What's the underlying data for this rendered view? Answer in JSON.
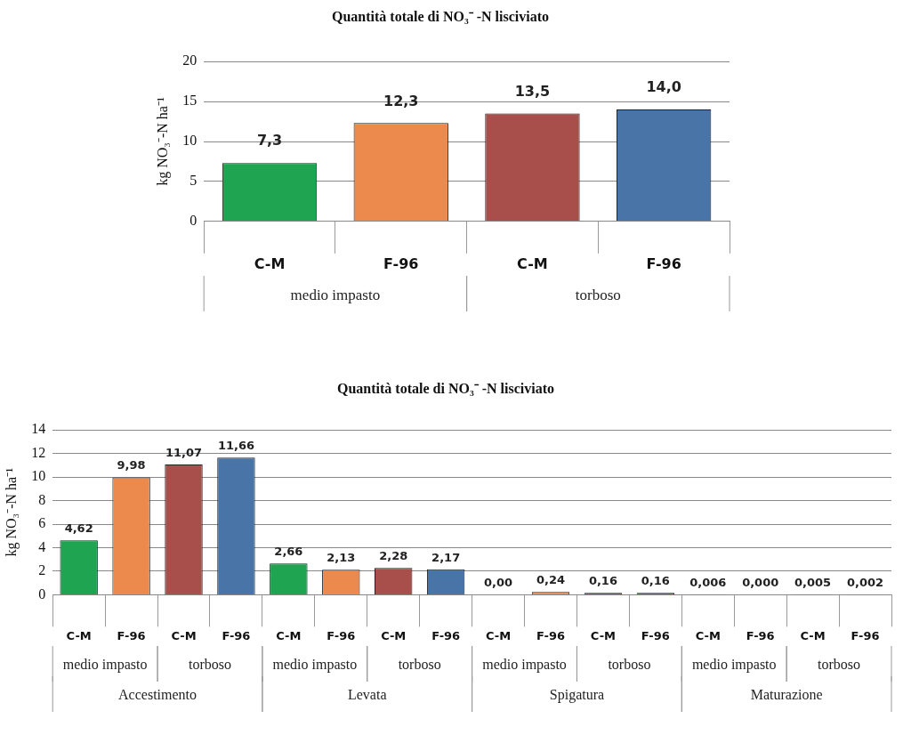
{
  "chart_data": [
    {
      "type": "bar",
      "title": "Quantità totale di NO₃⁻ -N lisciviato",
      "ylabel": "kg NO₃⁻-N ha⁻¹",
      "categories": [
        "C-M",
        "F-96",
        "C-M",
        "F-96"
      ],
      "values": [
        7.3,
        12.3,
        13.5,
        14.0
      ],
      "value_labels": [
        "7,3",
        "12,3",
        "13,5",
        "14,0"
      ],
      "colors": [
        "#1fa452",
        "#ec8a4e",
        "#a84f4b",
        "#4874a8"
      ],
      "ylim": [
        0,
        20
      ],
      "yticks": [
        0,
        5,
        10,
        15,
        20
      ],
      "grid": "y",
      "annotations": [
        "medio impasto",
        "torboso"
      ]
    },
    {
      "type": "bar",
      "title": "Quantità totale di NO₃⁻ -N lisciviato",
      "ylabel": "kg NO₃⁻-N ha⁻¹",
      "categories": [
        "C-M",
        "F-96",
        "C-M",
        "F-96",
        "C-M",
        "F-96",
        "C-M",
        "F-96",
        "C-M",
        "F-96",
        "C-M",
        "F-96",
        "C-M",
        "F-96",
        "C-M",
        "F-96"
      ],
      "values": [
        4.62,
        9.98,
        11.07,
        11.66,
        2.66,
        2.13,
        2.28,
        2.17,
        0.0,
        0.24,
        0.16,
        0.16,
        0.006,
        0.0,
        0.005,
        0.002
      ],
      "value_labels": [
        "4,62",
        "9,98",
        "11,07",
        "11,66",
        "2,66",
        "2,13",
        "2,28",
        "2,17",
        "0,00",
        "0,24",
        "0,16",
        "0,16",
        "0,006",
        "0,000",
        "0,005",
        "0,002"
      ],
      "colors": [
        "#1fa452",
        "#ec8a4e",
        "#a84f4b",
        "#4874a8",
        "#1fa452",
        "#ec8a4e",
        "#a84f4b",
        "#4874a8",
        "#1fa452",
        "#ec8a4e",
        "#a84f4b",
        "#4874a8",
        "#1fa452",
        "#ec8a4e",
        "#a84f4b",
        "#4874a8"
      ],
      "ylim": [
        0,
        14
      ],
      "yticks": [
        0,
        2,
        4,
        6,
        8,
        10,
        12,
        14
      ],
      "grid": "y",
      "annotations": [
        "medio impasto",
        "torboso",
        "medio impasto",
        "torboso",
        "medio impasto",
        "torboso",
        "medio impasto",
        "torboso",
        "Accestimento",
        "Levata",
        "Spigatura",
        "Maturazione"
      ]
    }
  ]
}
